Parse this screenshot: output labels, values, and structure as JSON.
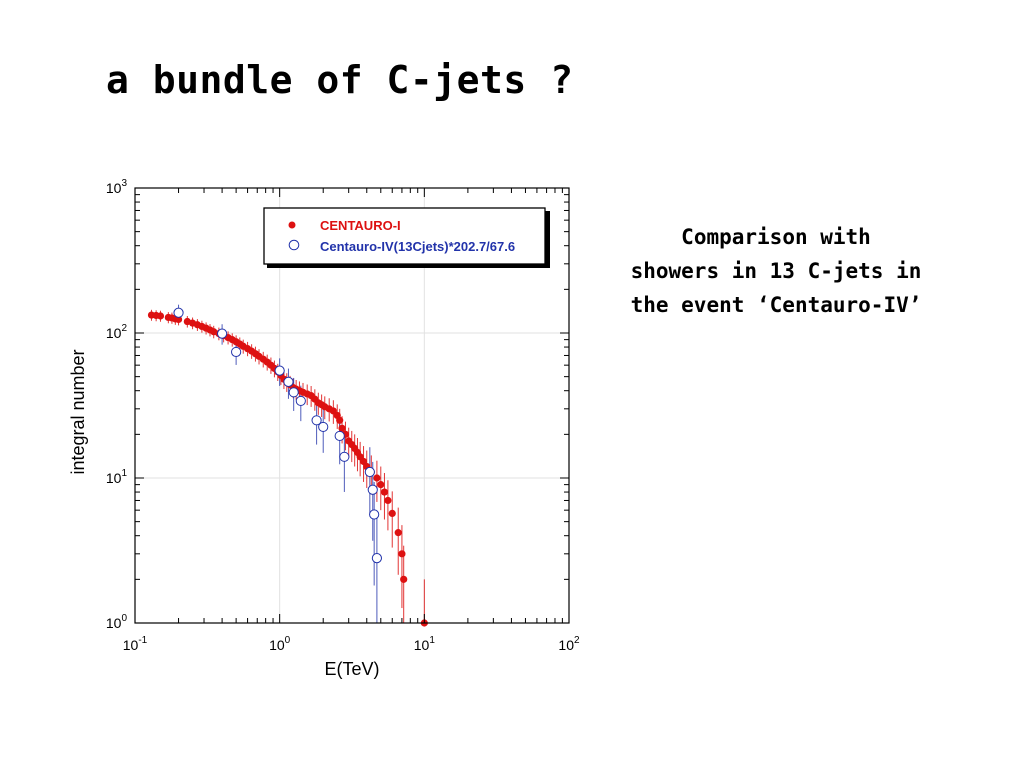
{
  "slide": {
    "title": "a bundle of C-jets ?",
    "side_text_lines": [
      "Comparison with",
      "showers in 13 C-jets in",
      "the event ‘Centauro-IV’"
    ]
  },
  "chart_data": {
    "type": "scatter",
    "xscale": "log",
    "yscale": "log",
    "xlabel": "E(TeV)",
    "ylabel": "integral number",
    "xlim": [
      0.1,
      100
    ],
    "ylim": [
      1,
      1000
    ],
    "x_ticks": [
      {
        "base": "10",
        "exp": "-1"
      },
      {
        "base": "10",
        "exp": "0"
      },
      {
        "base": "10",
        "exp": "1"
      },
      {
        "base": "10",
        "exp": "2"
      }
    ],
    "y_ticks": [
      {
        "base": "10",
        "exp": "0"
      },
      {
        "base": "10",
        "exp": "1"
      },
      {
        "base": "10",
        "exp": "2"
      },
      {
        "base": "10",
        "exp": "3"
      }
    ],
    "grid": true,
    "legend_position": "top-right",
    "series": [
      {
        "name": "CENTAURO-I",
        "marker": "filled-circle",
        "color": "#dd1111",
        "points": [
          [
            0.13,
            133
          ],
          [
            0.14,
            132
          ],
          [
            0.15,
            131
          ],
          [
            0.17,
            128
          ],
          [
            0.18,
            127
          ],
          [
            0.19,
            125
          ],
          [
            0.2,
            124
          ],
          [
            0.23,
            120
          ],
          [
            0.25,
            117
          ],
          [
            0.27,
            114
          ],
          [
            0.29,
            111
          ],
          [
            0.31,
            108
          ],
          [
            0.33,
            105
          ],
          [
            0.35,
            102
          ],
          [
            0.38,
            99
          ],
          [
            0.41,
            96
          ],
          [
            0.44,
            93
          ],
          [
            0.47,
            90
          ],
          [
            0.5,
            87
          ],
          [
            0.53,
            84
          ],
          [
            0.56,
            81
          ],
          [
            0.6,
            78
          ],
          [
            0.64,
            75
          ],
          [
            0.68,
            72
          ],
          [
            0.72,
            69
          ],
          [
            0.77,
            66
          ],
          [
            0.82,
            63
          ],
          [
            0.87,
            60
          ],
          [
            0.92,
            57
          ],
          [
            0.97,
            54
          ],
          [
            1.02,
            51
          ],
          [
            1.07,
            48
          ],
          [
            1.12,
            46
          ],
          [
            1.18,
            44
          ],
          [
            1.24,
            42
          ],
          [
            1.3,
            41
          ],
          [
            1.37,
            40
          ],
          [
            1.45,
            39
          ],
          [
            1.55,
            38
          ],
          [
            1.65,
            37
          ],
          [
            1.75,
            35
          ],
          [
            1.85,
            33
          ],
          [
            1.95,
            32
          ],
          [
            2.05,
            31
          ],
          [
            2.2,
            30
          ],
          [
            2.35,
            29
          ],
          [
            2.5,
            27
          ],
          [
            2.6,
            25
          ],
          [
            2.7,
            22
          ],
          [
            2.85,
            20
          ],
          [
            3.0,
            18
          ],
          [
            3.15,
            17
          ],
          [
            3.3,
            16
          ],
          [
            3.45,
            15
          ],
          [
            3.6,
            14
          ],
          [
            3.8,
            13
          ],
          [
            4.0,
            12
          ],
          [
            4.3,
            11
          ],
          [
            4.7,
            10
          ],
          [
            5.0,
            9
          ],
          [
            5.3,
            8
          ],
          [
            5.6,
            7
          ],
          [
            6.0,
            5.7
          ],
          [
            6.6,
            4.2
          ],
          [
            7.0,
            3
          ],
          [
            7.2,
            2
          ],
          [
            10.0,
            1
          ]
        ]
      },
      {
        "name": "Centauro-IV(13Cjets)*202.7/67.6",
        "marker": "open-circle",
        "color": "#2233aa",
        "points": [
          [
            0.2,
            138
          ],
          [
            0.4,
            99
          ],
          [
            0.5,
            74
          ],
          [
            1.0,
            55
          ],
          [
            1.15,
            46
          ],
          [
            1.25,
            39
          ],
          [
            1.4,
            34
          ],
          [
            1.8,
            25
          ],
          [
            2.0,
            22.5
          ],
          [
            2.6,
            19.5
          ],
          [
            2.8,
            14
          ],
          [
            4.2,
            11
          ],
          [
            4.4,
            8.3
          ],
          [
            4.5,
            5.6
          ],
          [
            4.7,
            2.8
          ]
        ]
      }
    ]
  }
}
